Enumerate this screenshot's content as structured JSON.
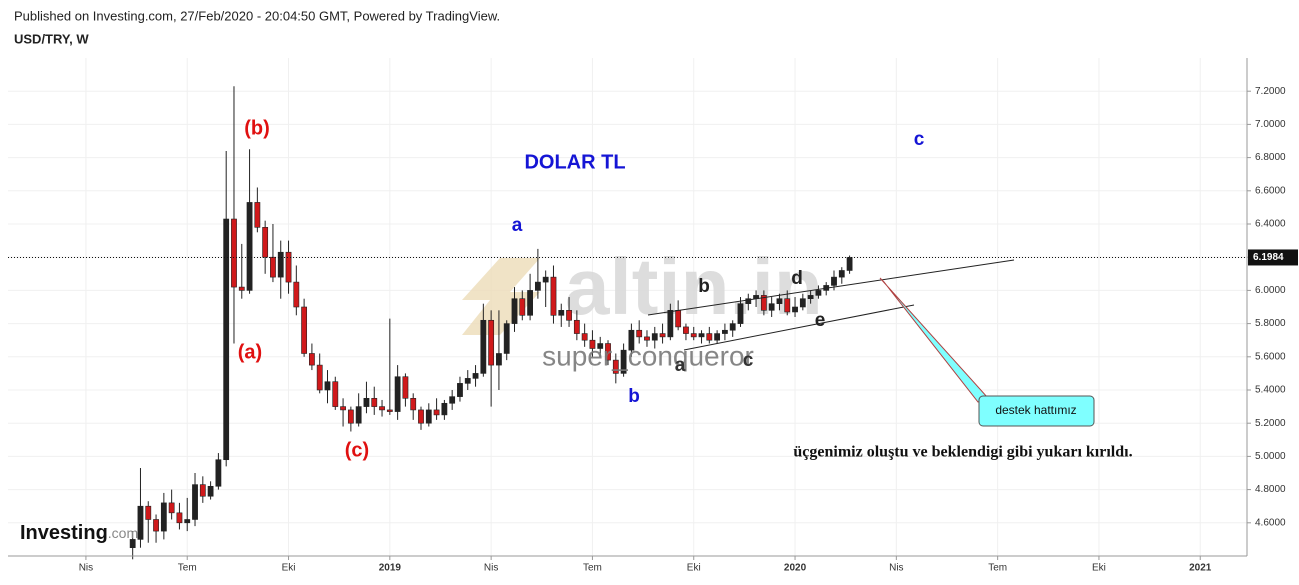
{
  "header": {
    "published": "Published on Investing.com, 27/Feb/2020 - 20:04:50 GMT, Powered by TradingView.",
    "symbol": "USD/TRY, W"
  },
  "chart_data": {
    "type": "candlestick",
    "x": [
      6,
      7,
      8,
      9,
      10,
      11,
      12,
      13,
      14,
      15,
      16,
      17,
      18,
      19,
      20,
      21,
      22,
      23,
      24,
      25,
      26,
      27,
      28,
      29,
      30,
      31,
      32,
      33,
      34,
      35,
      36,
      37,
      38,
      39,
      40,
      41,
      42,
      43,
      44,
      45,
      46,
      47,
      48,
      49,
      50,
      51,
      52,
      53,
      54,
      55,
      56,
      57,
      58,
      59,
      60,
      61,
      62,
      63,
      64,
      65,
      66,
      67,
      68,
      69,
      70,
      71,
      72,
      73,
      74,
      75,
      76,
      77,
      78,
      79,
      80,
      81,
      82,
      83,
      84,
      85,
      86,
      87,
      88,
      89,
      90,
      91,
      92,
      93,
      94,
      95,
      96,
      97,
      98
    ],
    "open": [
      4.45,
      4.5,
      4.7,
      4.62,
      4.55,
      4.72,
      4.66,
      4.6,
      4.62,
      4.83,
      4.76,
      4.82,
      4.98,
      6.43,
      6.02,
      6.0,
      6.53,
      6.38,
      6.2,
      6.08,
      6.23,
      6.05,
      5.9,
      5.62,
      5.55,
      5.4,
      5.45,
      5.3,
      5.28,
      5.2,
      5.3,
      5.35,
      5.3,
      5.28,
      5.27,
      5.48,
      5.35,
      5.28,
      5.2,
      5.28,
      5.25,
      5.32,
      5.36,
      5.44,
      5.47,
      5.5,
      5.82,
      5.55,
      5.62,
      5.8,
      5.95,
      5.85,
      6.0,
      6.05,
      6.08,
      5.85,
      5.88,
      5.82,
      5.74,
      5.7,
      5.65,
      5.68,
      5.58,
      5.5,
      5.64,
      5.76,
      5.72,
      5.7,
      5.74,
      5.72,
      5.88,
      5.78,
      5.74,
      5.72,
      5.74,
      5.7,
      5.74,
      5.76,
      5.8,
      5.92,
      5.95,
      5.97,
      5.88,
      5.92,
      5.95,
      5.87,
      5.9,
      5.95,
      5.97,
      6.0,
      6.03,
      6.08,
      6.12
    ],
    "high": [
      4.55,
      4.93,
      4.73,
      4.65,
      4.78,
      4.8,
      4.72,
      4.75,
      4.9,
      4.88,
      4.85,
      5.02,
      6.84,
      7.23,
      6.28,
      6.85,
      6.62,
      6.42,
      6.4,
      6.3,
      6.3,
      6.15,
      5.95,
      5.68,
      5.62,
      5.52,
      5.48,
      5.35,
      5.3,
      5.38,
      5.45,
      5.42,
      5.34,
      5.83,
      5.55,
      5.5,
      5.38,
      5.3,
      5.32,
      5.35,
      5.34,
      5.4,
      5.48,
      5.52,
      5.55,
      5.92,
      5.88,
      5.88,
      5.82,
      6.02,
      6.0,
      6.1,
      6.25,
      6.12,
      6.15,
      5.92,
      5.96,
      5.88,
      5.8,
      5.76,
      5.72,
      5.7,
      5.62,
      5.68,
      5.8,
      5.82,
      5.76,
      5.78,
      5.8,
      5.92,
      5.94,
      5.8,
      5.78,
      5.76,
      5.78,
      5.76,
      5.8,
      5.82,
      5.96,
      5.98,
      6.0,
      6.0,
      5.96,
      5.98,
      6.0,
      5.96,
      5.98,
      6.0,
      6.03,
      6.05,
      6.12,
      6.14,
      6.21
    ],
    "low": [
      4.38,
      4.45,
      4.48,
      4.48,
      4.5,
      4.62,
      4.56,
      4.55,
      4.58,
      4.72,
      4.74,
      4.8,
      4.94,
      5.68,
      5.95,
      5.98,
      6.35,
      6.1,
      6.05,
      5.95,
      5.98,
      5.85,
      5.6,
      5.52,
      5.38,
      5.32,
      5.28,
      5.18,
      5.15,
      5.18,
      5.26,
      5.25,
      5.24,
      5.25,
      5.22,
      5.3,
      5.22,
      5.16,
      5.18,
      5.22,
      5.22,
      5.28,
      5.33,
      5.4,
      5.42,
      5.48,
      5.3,
      5.4,
      5.58,
      5.75,
      5.82,
      5.82,
      5.95,
      5.9,
      5.8,
      5.78,
      5.78,
      5.7,
      5.66,
      5.6,
      5.6,
      5.55,
      5.44,
      5.48,
      5.6,
      5.68,
      5.66,
      5.65,
      5.68,
      5.7,
      5.76,
      5.7,
      5.7,
      5.68,
      5.68,
      5.68,
      5.7,
      5.72,
      5.78,
      5.88,
      5.9,
      5.85,
      5.84,
      5.88,
      5.85,
      5.84,
      5.88,
      5.92,
      5.95,
      5.97,
      6.0,
      6.04,
      6.1
    ],
    "close": [
      4.5,
      4.7,
      4.62,
      4.55,
      4.72,
      4.66,
      4.6,
      4.62,
      4.83,
      4.76,
      4.82,
      4.98,
      6.43,
      6.02,
      6.0,
      6.53,
      6.38,
      6.2,
      6.08,
      6.23,
      6.05,
      5.9,
      5.62,
      5.55,
      5.4,
      5.45,
      5.3,
      5.28,
      5.2,
      5.3,
      5.35,
      5.3,
      5.28,
      5.27,
      5.48,
      5.35,
      5.28,
      5.2,
      5.28,
      5.25,
      5.32,
      5.36,
      5.44,
      5.47,
      5.5,
      5.82,
      5.55,
      5.62,
      5.8,
      5.95,
      5.85,
      6.0,
      6.05,
      6.08,
      5.85,
      5.88,
      5.82,
      5.74,
      5.7,
      5.65,
      5.68,
      5.58,
      5.5,
      5.64,
      5.76,
      5.72,
      5.7,
      5.74,
      5.72,
      5.88,
      5.78,
      5.74,
      5.72,
      5.74,
      5.7,
      5.74,
      5.76,
      5.8,
      5.92,
      5.95,
      5.97,
      5.88,
      5.92,
      5.95,
      5.87,
      5.9,
      5.95,
      5.97,
      6.0,
      6.03,
      6.08,
      6.12,
      6.1984
    ],
    "up_color": "#222222",
    "down_color": "#d0191b",
    "last_price": 6.1984,
    "xlim": [
      -10,
      149
    ],
    "xticks": [
      {
        "value": 0,
        "label": "Nis"
      },
      {
        "value": 13,
        "label": "Tem"
      },
      {
        "value": 26,
        "label": "Eki"
      },
      {
        "value": 39,
        "label": "2019"
      },
      {
        "value": 52,
        "label": "Nis"
      },
      {
        "value": 65,
        "label": "Tem"
      },
      {
        "value": 78,
        "label": "Eki"
      },
      {
        "value": 91,
        "label": "2020"
      },
      {
        "value": 104,
        "label": "Nis"
      },
      {
        "value": 117,
        "label": "Tem"
      },
      {
        "value": 130,
        "label": "Eki"
      },
      {
        "value": 143,
        "label": "2021"
      }
    ],
    "ylim": [
      4.4,
      7.4
    ],
    "yticks": [
      {
        "value": 4.6,
        "label": "4.6000"
      },
      {
        "value": 4.8,
        "label": "4.8000"
      },
      {
        "value": 5.0,
        "label": "5.0000"
      },
      {
        "value": 5.2,
        "label": "5.2000"
      },
      {
        "value": 5.4,
        "label": "5.4000"
      },
      {
        "value": 5.6,
        "label": "5.6000"
      },
      {
        "value": 5.8,
        "label": "5.8000"
      },
      {
        "value": 6.0,
        "label": "6.0000"
      },
      {
        "value": 6.2,
        "label": "6.2000"
      },
      {
        "value": 6.4,
        "label": "6.4000"
      },
      {
        "value": 6.6,
        "label": "6.6000"
      },
      {
        "value": 6.8,
        "label": "6.8000"
      },
      {
        "value": 7.0,
        "label": "7.0000"
      },
      {
        "value": 7.2,
        "label": "7.2000"
      }
    ],
    "grid": true,
    "annotations": [
      "(b)",
      "(a)",
      "(c)",
      "DOLAR TL",
      "a",
      "b",
      "c",
      "b",
      "d",
      "e",
      "a",
      "c",
      "üçgenimiz oluştu ve beklendigi gibi yukarı kırıldı."
    ],
    "callout": "destek hattımız",
    "watermark": {
      "logo": "altin.in",
      "user": "super_conqueror"
    },
    "brand": {
      "name": "Investing",
      "suffix": ".com"
    }
  }
}
